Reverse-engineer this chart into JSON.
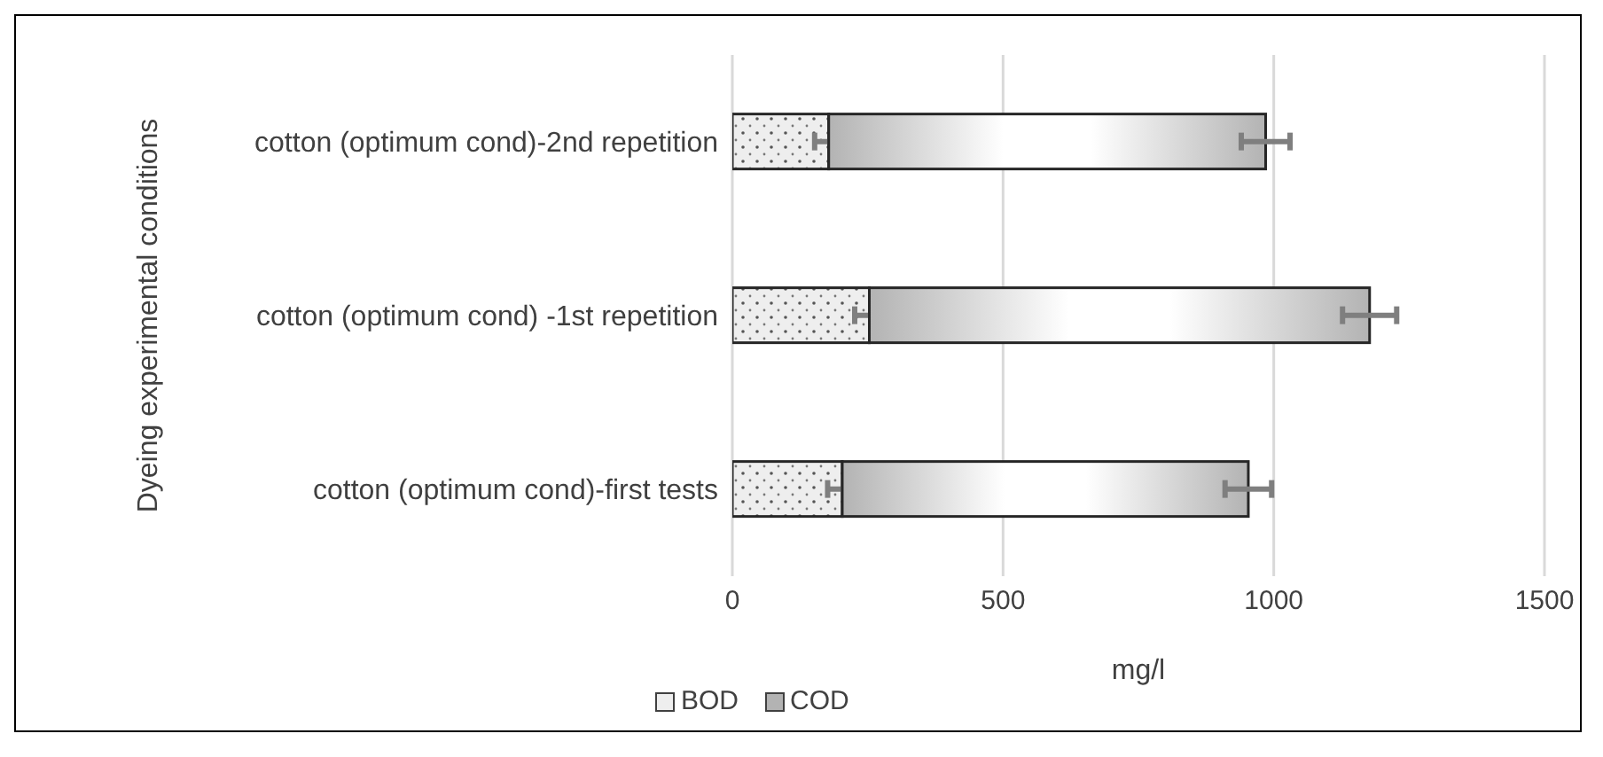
{
  "chart_data": {
    "type": "bar",
    "orientation": "horizontal",
    "stacked": true,
    "categories": [
      "cotton (optimum cond)-2nd repetition",
      "cotton (optimum cond) -1st repetition",
      "cotton (optimum cond)-first tests"
    ],
    "series": [
      {
        "name": "BOD",
        "color": "#eeeeee",
        "values": [
          178,
          253,
          203
        ],
        "errors": [
          26,
          27,
          27
        ]
      },
      {
        "name": "COD",
        "color": "#b3b3b3",
        "values": [
          807,
          924,
          750
        ],
        "errors": [
          45,
          50,
          43
        ]
      }
    ],
    "xlabel": "mg/l",
    "ylabel": "Dyeing experimental conditions",
    "xlim": [
      0,
      1500
    ],
    "xticks": [
      0,
      500,
      1000,
      1500
    ],
    "grid": "x",
    "legend": "bottom"
  }
}
